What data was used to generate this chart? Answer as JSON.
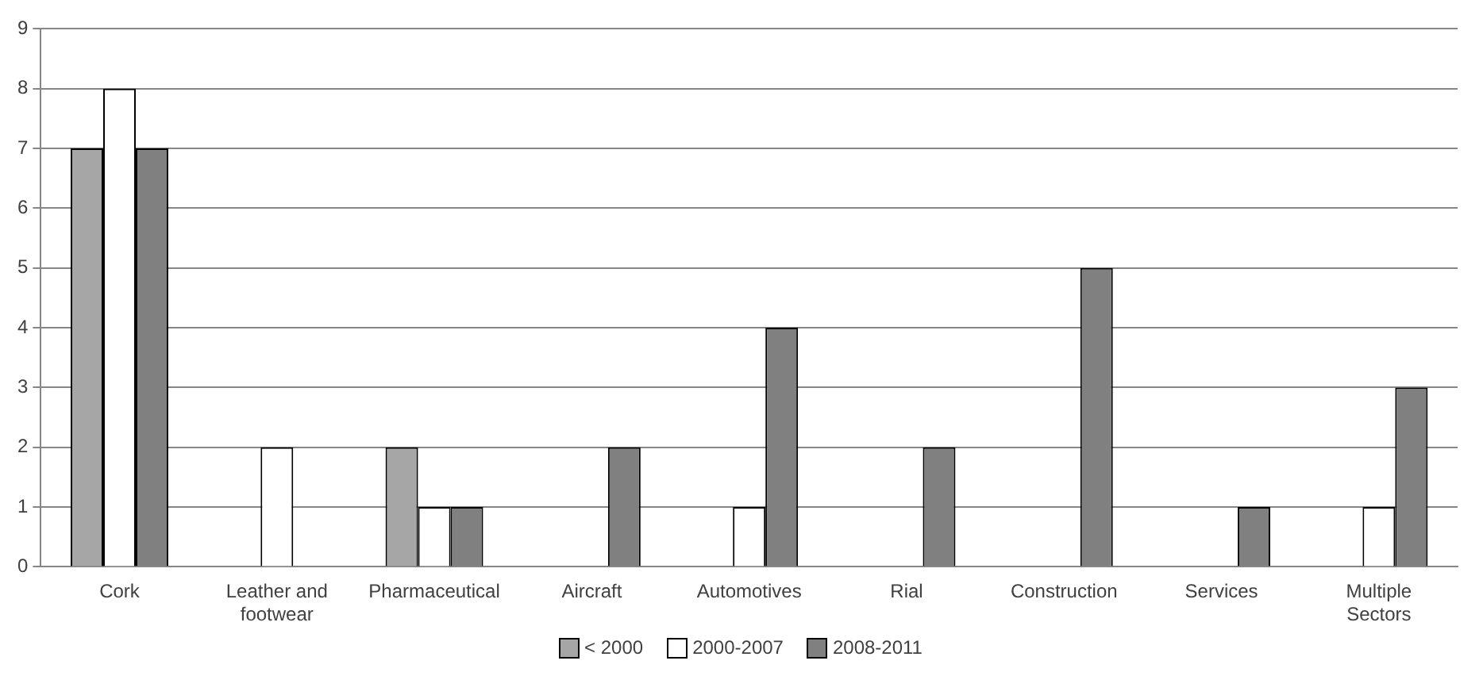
{
  "chart_data": {
    "type": "bar",
    "categories": [
      "Cork",
      "Leather and footwear",
      "Pharmaceutical",
      "Aircraft",
      "Automotives",
      "Rial",
      "Construction",
      "Services",
      "Multiple Sectors"
    ],
    "series": [
      {
        "name": "< 2000",
        "color": "#a6a6a6",
        "values": [
          7,
          0,
          2,
          0,
          0,
          0,
          0,
          0,
          0
        ]
      },
      {
        "name": "2000-2007",
        "color": "#ffffff",
        "values": [
          8,
          2,
          1,
          0,
          1,
          0,
          0,
          0,
          1
        ]
      },
      {
        "name": "2008-2011",
        "color": "#808080",
        "values": [
          7,
          0,
          1,
          2,
          4,
          2,
          5,
          1,
          3
        ]
      }
    ],
    "ylim": [
      0,
      9
    ],
    "yticks": [
      0,
      1,
      2,
      3,
      4,
      5,
      6,
      7,
      8,
      9
    ],
    "grid": "y",
    "legend": "bottom"
  }
}
